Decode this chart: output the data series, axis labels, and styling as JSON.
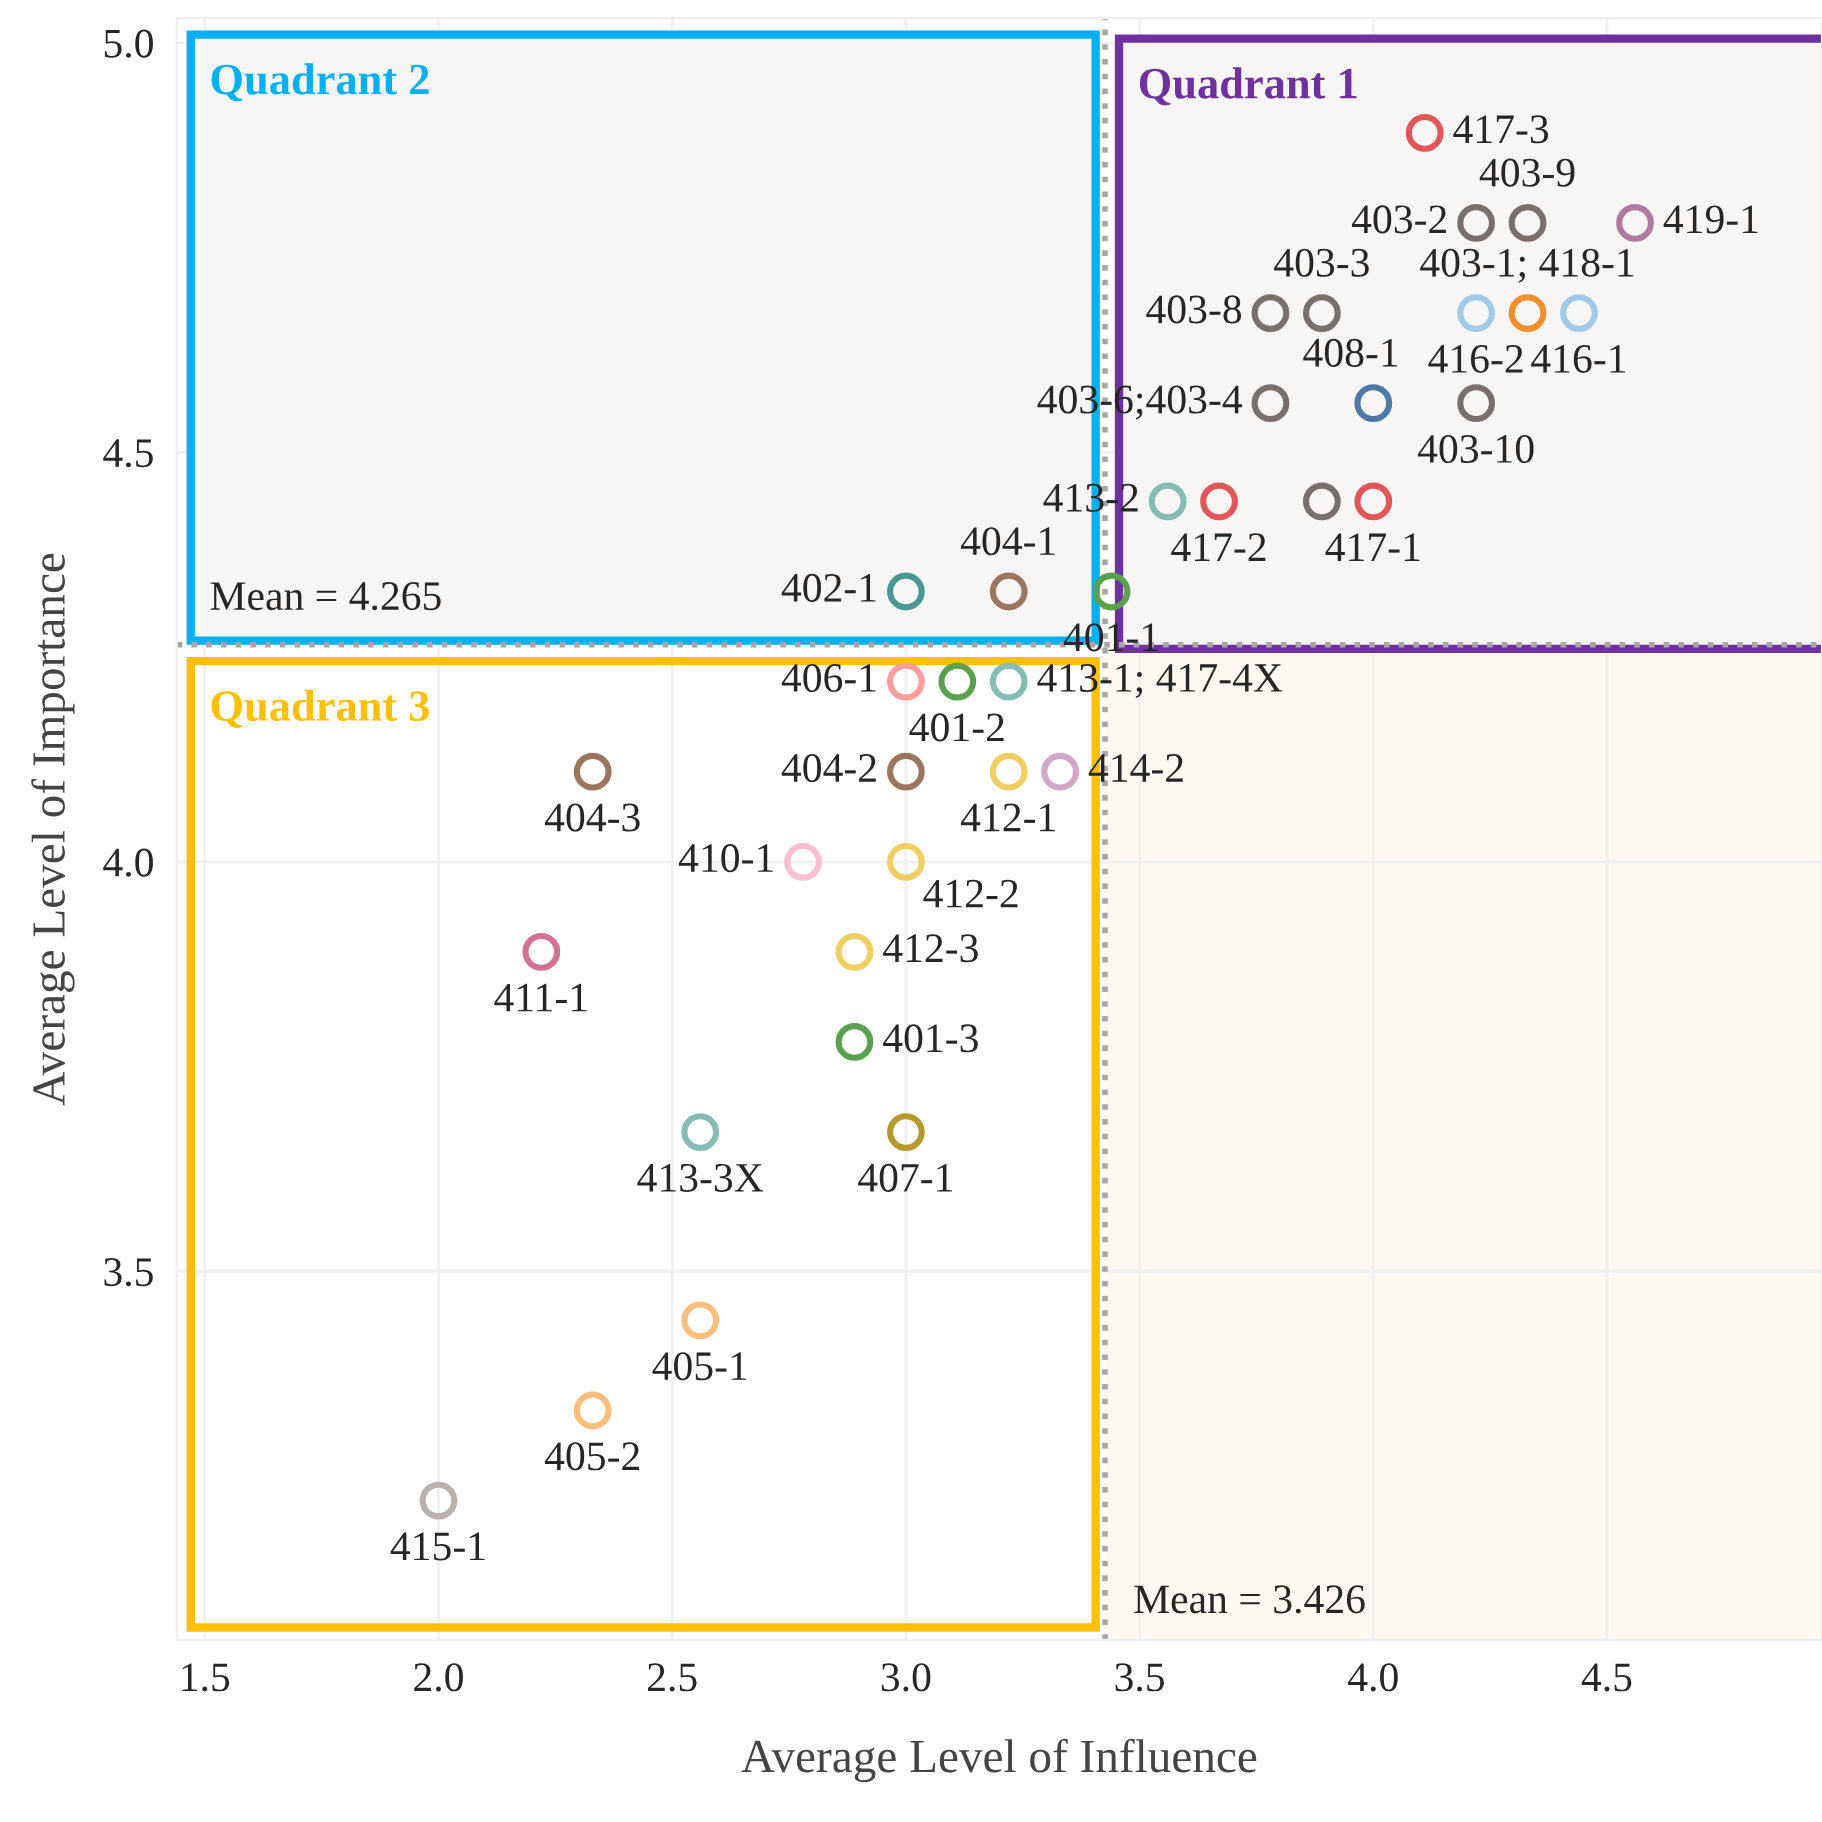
{
  "chart_data": {
    "type": "scatter",
    "xlabel": "Average Level of Influence",
    "ylabel": "Average Level of Importance",
    "x": [
      4.11,
      4.22,
      4.33,
      4.56,
      3.78,
      3.89,
      4.22,
      4.33,
      4.44,
      3.78,
      4.0,
      4.22,
      3.56,
      3.67,
      3.89,
      4.0,
      3.0,
      3.22,
      3.44,
      3.0,
      3.11,
      3.22,
      3.0,
      3.22,
      3.33,
      2.33,
      2.78,
      3.0,
      2.22,
      2.89,
      2.89,
      2.56,
      3.0,
      2.56,
      2.33,
      2.0
    ],
    "values": [
      4.89,
      4.78,
      4.78,
      4.78,
      4.67,
      4.67,
      4.67,
      4.67,
      4.67,
      4.56,
      4.56,
      4.56,
      4.44,
      4.44,
      4.44,
      4.44,
      4.33,
      4.33,
      4.33,
      4.22,
      4.22,
      4.22,
      4.11,
      4.11,
      4.11,
      4.11,
      4.0,
      4.0,
      3.89,
      3.89,
      3.78,
      3.67,
      3.67,
      3.44,
      3.33,
      3.22
    ],
    "value_labels": [
      "417-3",
      "403-2",
      "403-9",
      "419-1",
      "403-8",
      "403-3",
      "416-2",
      "403-1; 418-1",
      "416-1",
      "403-6;403-4",
      "408-1",
      "403-10",
      "413-2",
      "417-2",
      null,
      "417-1",
      "402-1",
      "404-1",
      "401-1",
      "406-1",
      "401-2",
      "413-1; 417-4X",
      "404-2",
      "412-1",
      "414-2",
      "404-3",
      "410-1",
      "412-2",
      "411-1",
      "412-3",
      "401-3",
      "413-3X",
      "407-1",
      "405-1",
      "405-2",
      "415-1"
    ],
    "colors": [
      "#e15759",
      "#79706e",
      "#79706e",
      "#b07aa1",
      "#79706e",
      "#79706e",
      "#a0cbe8",
      "#f28e2b",
      "#a0cbe8",
      "#79706e",
      "#4e79a7",
      "#79706e",
      "#86bcb6",
      "#e15759",
      "#79706e",
      "#e15759",
      "#499894",
      "#9c755f",
      "#59a14f",
      "#ff9d9a",
      "#59a14f",
      "#86bcb6",
      "#9c755f",
      "#f1ce63",
      "#d4a6c8",
      "#9c755f",
      "#fabfd2",
      "#f1ce63",
      "#d37295",
      "#f1ce63",
      "#59a14f",
      "#86bcb6",
      "#b6992d",
      "#ffbe7d",
      "#ffbe7d",
      "#bab0ac"
    ],
    "marker": "circle",
    "xlim": [
      1.44,
      4.96
    ],
    "ylim": [
      3.05,
      5.03
    ],
    "xticks": [
      1.5,
      {
        "value": 2,
        "label": "2.0"
      },
      2.5,
      {
        "value": 3,
        "label": "3.0"
      },
      3.5,
      {
        "value": 4,
        "label": "4.0"
      },
      4.5
    ],
    "yticks": [
      3.5,
      {
        "value": 4,
        "label": "4.0"
      },
      4.5,
      {
        "value": 5,
        "label": "5.0"
      }
    ],
    "grid": true,
    "ref_lines": [
      {
        "axis": "x",
        "value": 3.426,
        "label": "Mean = 3.426",
        "color": "#a6a6a6",
        "line_style": "dotted"
      },
      {
        "axis": "y",
        "value": 4.265,
        "label": "Mean = 4.265",
        "color": "#a6a6a6",
        "line_style": "dotted"
      }
    ],
    "annotations": [
      "Quadrant 1",
      "Quadrant 2",
      "Quadrant 3"
    ]
  }
}
